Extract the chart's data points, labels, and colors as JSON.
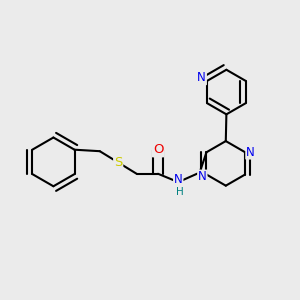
{
  "bg_color": "#ebebeb",
  "bond_color": "#000000",
  "bond_width": 1.5,
  "atom_colors": {
    "N": "#0000ee",
    "O": "#ee0000",
    "S": "#cccc00",
    "H": "#008080",
    "C": "#000000"
  },
  "font_size": 8.5
}
